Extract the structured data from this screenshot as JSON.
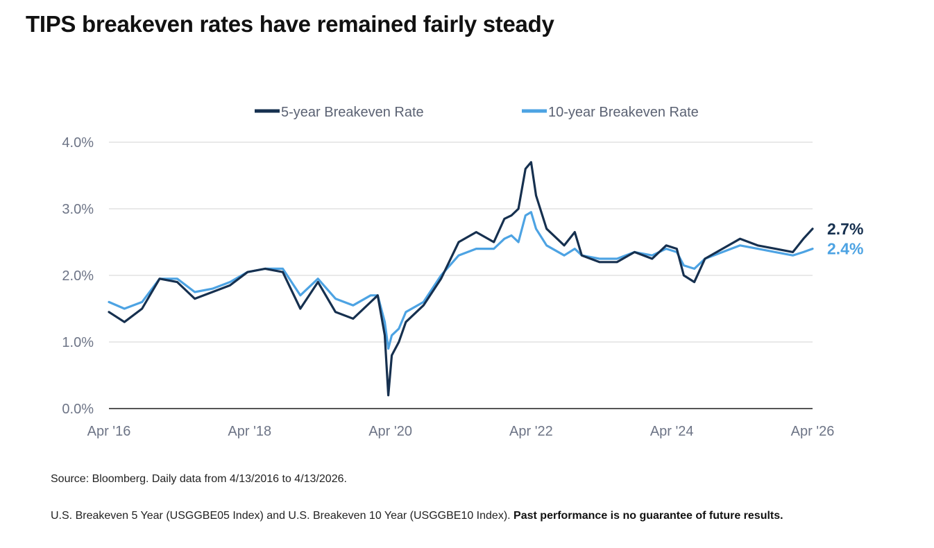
{
  "title": "TIPS breakeven rates have remained fairly steady",
  "source": "Source: Bloomberg. Daily data from 4/13/2016 to 4/13/2026.",
  "disclaimer": "U.S. Breakeven 5 Year (USGGBE05 Index) and U.S. Breakeven 10 Year (USGGBE10 Index).",
  "disclaimer_bold": "Past performance is no guarantee of future results.",
  "chart_data": {
    "type": "line",
    "title": "TIPS breakeven rates have remained fairly steady",
    "xlabel": "",
    "ylabel": "",
    "x_ticks": [
      "Apr '16",
      "Apr '18",
      "Apr '20",
      "Apr '22",
      "Apr '24",
      "Apr '26"
    ],
    "y_ticks": [
      "0.0%",
      "1.0%",
      "2.0%",
      "3.0%",
      "4.0%"
    ],
    "xlim": [
      2016.28,
      2026.28
    ],
    "ylim": [
      0,
      4
    ],
    "grid": true,
    "legend_position": "top-center",
    "x": [
      2016.28,
      2016.5,
      2016.75,
      2017.0,
      2017.25,
      2017.5,
      2017.75,
      2018.0,
      2018.25,
      2018.5,
      2018.75,
      2019.0,
      2019.25,
      2019.5,
      2019.75,
      2020.0,
      2020.1,
      2020.2,
      2020.25,
      2020.3,
      2020.4,
      2020.5,
      2020.75,
      2021.0,
      2021.25,
      2021.5,
      2021.75,
      2021.9,
      2022.0,
      2022.1,
      2022.2,
      2022.28,
      2022.35,
      2022.5,
      2022.75,
      2022.9,
      2023.0,
      2023.25,
      2023.5,
      2023.75,
      2024.0,
      2024.2,
      2024.35,
      2024.45,
      2024.6,
      2024.75,
      2025.0,
      2025.25,
      2025.5,
      2025.75,
      2026.0,
      2026.15,
      2026.28
    ],
    "series": [
      {
        "name": "5-year Breakeven Rate",
        "color": "#16304f",
        "end_label": "2.7%",
        "values": [
          1.45,
          1.3,
          1.5,
          1.95,
          1.9,
          1.65,
          1.75,
          1.85,
          2.05,
          2.1,
          2.05,
          1.5,
          1.9,
          1.45,
          1.35,
          1.6,
          1.7,
          1.1,
          0.2,
          0.8,
          1.0,
          1.3,
          1.55,
          1.95,
          2.5,
          2.65,
          2.5,
          2.85,
          2.9,
          3.0,
          3.6,
          3.7,
          3.2,
          2.7,
          2.45,
          2.65,
          2.3,
          2.2,
          2.2,
          2.35,
          2.25,
          2.45,
          2.4,
          2.0,
          1.9,
          2.25,
          2.4,
          2.55,
          2.45,
          2.4,
          2.35,
          2.55,
          2.7
        ]
      },
      {
        "name": "10-year Breakeven Rate",
        "color": "#4da3e3",
        "end_label": "2.4%",
        "values": [
          1.6,
          1.5,
          1.6,
          1.95,
          1.95,
          1.75,
          1.8,
          1.9,
          2.05,
          2.1,
          2.1,
          1.7,
          1.95,
          1.65,
          1.55,
          1.7,
          1.7,
          1.3,
          0.9,
          1.1,
          1.2,
          1.45,
          1.6,
          2.0,
          2.3,
          2.4,
          2.4,
          2.55,
          2.6,
          2.5,
          2.9,
          2.95,
          2.7,
          2.45,
          2.3,
          2.4,
          2.3,
          2.25,
          2.25,
          2.35,
          2.3,
          2.4,
          2.35,
          2.15,
          2.1,
          2.25,
          2.35,
          2.45,
          2.4,
          2.35,
          2.3,
          2.35,
          2.4
        ]
      }
    ]
  }
}
